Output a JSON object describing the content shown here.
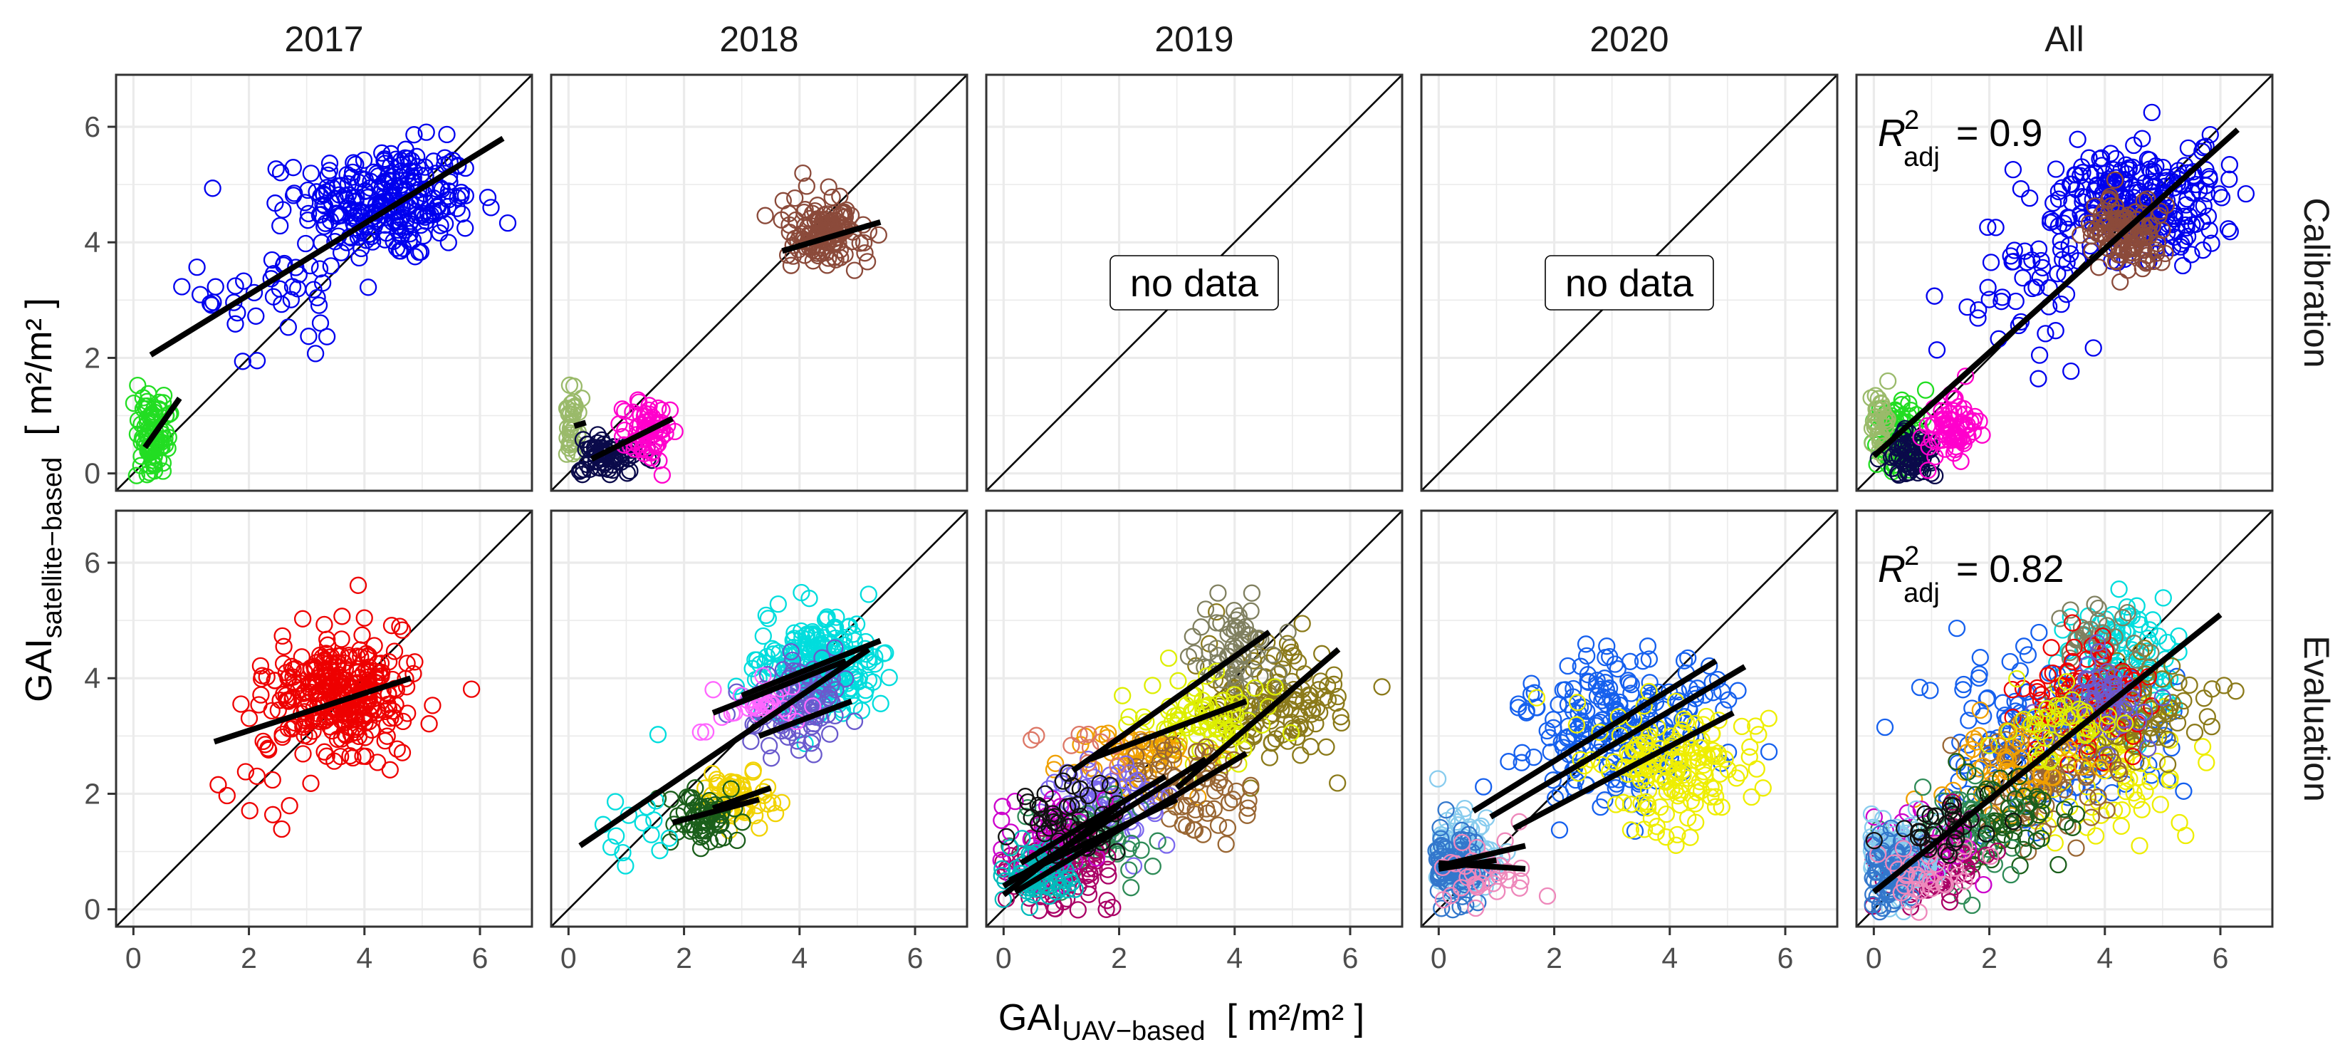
{
  "chart_data": {
    "type": "scatter",
    "title": "",
    "xlabel": {
      "prefix": "GAI",
      "subscript": "UAV−based",
      "units": "[ m²/m² ]"
    },
    "ylabel": {
      "prefix": "GAI",
      "subscript": "satellite−based",
      "units": "[ m²/m² ]"
    },
    "xlim": [
      -0.3,
      6.9
    ],
    "ylim": [
      -0.3,
      6.9
    ],
    "x_ticks": [
      0,
      2,
      4,
      6
    ],
    "y_ticks": [
      0,
      2,
      4,
      6
    ],
    "columns": [
      "2017",
      "2018",
      "2019",
      "2020",
      "All"
    ],
    "rows": [
      "Calibration",
      "Evaluation"
    ],
    "reference_line": "1:1",
    "no_data_label": "no data",
    "r2_label": {
      "symbol": "R",
      "sup": "2",
      "sub": "adj"
    },
    "panels": [
      {
        "row": "Calibration",
        "column": "2017",
        "clusters": [
          {
            "color": "#0000ee",
            "center": [
              4.4,
              4.7
            ],
            "spread": [
              0.75,
              0.5
            ],
            "n": 260
          },
          {
            "color": "#0000ee",
            "center": [
              2.6,
              3.2
            ],
            "spread": [
              0.7,
              0.8
            ],
            "n": 45
          },
          {
            "color": "#22dd22",
            "center": [
              0.35,
              0.7
            ],
            "spread": [
              0.15,
              0.35
            ],
            "n": 90
          }
        ],
        "fits": [
          {
            "x": [
              0.3,
              6.4
            ],
            "y": [
              2.05,
              5.8
            ]
          },
          {
            "x": [
              0.2,
              0.8
            ],
            "y": [
              0.45,
              1.3
            ]
          }
        ]
      },
      {
        "row": "Calibration",
        "column": "2018",
        "clusters": [
          {
            "color": "#8b4a3a",
            "center": [
              4.4,
              4.15
            ],
            "spread": [
              0.35,
              0.3
            ],
            "n": 140
          },
          {
            "color": "#9aba6a",
            "center": [
              0.05,
              0.9
            ],
            "spread": [
              0.06,
              0.3
            ],
            "n": 35
          },
          {
            "color": "#0a0a4a",
            "center": [
              0.65,
              0.3
            ],
            "spread": [
              0.25,
              0.2
            ],
            "n": 70
          },
          {
            "color": "#ff00cc",
            "center": [
              1.35,
              0.7
            ],
            "spread": [
              0.2,
              0.25
            ],
            "n": 70
          }
        ],
        "fits": [
          {
            "x": [
              3.7,
              5.4
            ],
            "y": [
              3.85,
              4.35
            ]
          },
          {
            "x": [
              0.1,
              0.3
            ],
            "y": [
              0.82,
              0.88
            ]
          },
          {
            "x": [
              0.4,
              1.8
            ],
            "y": [
              0.25,
              0.95
            ]
          }
        ]
      },
      {
        "row": "Calibration",
        "column": "2019",
        "no_data": true,
        "clusters": [],
        "fits": []
      },
      {
        "row": "Calibration",
        "column": "2020",
        "no_data": true,
        "clusters": [],
        "fits": []
      },
      {
        "row": "Calibration",
        "column": "All",
        "r2": "0.9",
        "clusters": [
          {
            "color": "#0000ee",
            "center": [
              4.6,
              4.7
            ],
            "spread": [
              0.75,
              0.5
            ],
            "n": 260
          },
          {
            "color": "#0000ee",
            "center": [
              2.6,
              3.2
            ],
            "spread": [
              0.7,
              0.8
            ],
            "n": 45
          },
          {
            "color": "#8b4a3a",
            "center": [
              4.4,
              4.15
            ],
            "spread": [
              0.35,
              0.3
            ],
            "n": 120
          },
          {
            "color": "#22dd22",
            "center": [
              0.4,
              0.6
            ],
            "spread": [
              0.2,
              0.35
            ],
            "n": 90
          },
          {
            "color": "#9aba6a",
            "center": [
              0.1,
              0.9
            ],
            "spread": [
              0.08,
              0.3
            ],
            "n": 35
          },
          {
            "color": "#0a0a4a",
            "center": [
              0.7,
              0.3
            ],
            "spread": [
              0.25,
              0.2
            ],
            "n": 70
          },
          {
            "color": "#ff00cc",
            "center": [
              1.35,
              0.7
            ],
            "spread": [
              0.2,
              0.25
            ],
            "n": 70
          }
        ],
        "fits": [
          {
            "x": [
              0.0,
              6.3
            ],
            "y": [
              0.3,
              5.95
            ]
          }
        ]
      },
      {
        "row": "Evaluation",
        "column": "2017",
        "clusters": [
          {
            "color": "#ee0000",
            "center": [
              3.6,
              3.7
            ],
            "spread": [
              0.6,
              0.5
            ],
            "n": 320
          },
          {
            "color": "#ee0000",
            "center": [
              2.0,
              2.2
            ],
            "spread": [
              0.5,
              0.5
            ],
            "n": 12
          }
        ],
        "fits": [
          {
            "x": [
              1.4,
              4.8
            ],
            "y": [
              2.9,
              4.0
            ]
          }
        ]
      },
      {
        "row": "Evaluation",
        "column": "2018",
        "clusters": [
          {
            "color": "#00dddd",
            "center": [
              4.3,
              4.2
            ],
            "spread": [
              0.5,
              0.45
            ],
            "n": 240
          },
          {
            "color": "#6a5acd",
            "center": [
              4.0,
              3.5
            ],
            "spread": [
              0.4,
              0.4
            ],
            "n": 100
          },
          {
            "color": "#ff66ff",
            "center": [
              3.4,
              3.6
            ],
            "spread": [
              0.5,
              0.3
            ],
            "n": 30
          },
          {
            "color": "#f1d200",
            "center": [
              2.9,
              1.9
            ],
            "spread": [
              0.3,
              0.25
            ],
            "n": 60
          },
          {
            "color": "#1a5e1a",
            "center": [
              2.3,
              1.6
            ],
            "spread": [
              0.35,
              0.25
            ],
            "n": 60
          },
          {
            "color": "#00dddd",
            "center": [
              1.2,
              1.4
            ],
            "spread": [
              0.6,
              0.5
            ],
            "n": 15
          }
        ],
        "fits": [
          {
            "x": [
              0.2,
              5.2
            ],
            "y": [
              1.1,
              4.5
            ]
          },
          {
            "x": [
              3.0,
              5.4
            ],
            "y": [
              3.7,
              4.65
            ]
          },
          {
            "x": [
              2.5,
              4.8
            ],
            "y": [
              3.4,
              4.3
            ]
          },
          {
            "x": [
              3.3,
              4.9
            ],
            "y": [
              3.0,
              3.6
            ]
          },
          {
            "x": [
              1.8,
              3.3
            ],
            "y": [
              1.5,
              1.9
            ]
          },
          {
            "x": [
              2.5,
              3.5
            ],
            "y": [
              1.75,
              2.1
            ]
          }
        ]
      },
      {
        "row": "Evaluation",
        "column": "2019",
        "clusters": [
          {
            "color": "#8b7a1a",
            "center": [
              4.6,
              3.6
            ],
            "spread": [
              0.6,
              0.5
            ],
            "n": 140
          },
          {
            "color": "#808060",
            "center": [
              4.0,
              4.5
            ],
            "spread": [
              0.4,
              0.4
            ],
            "n": 60
          },
          {
            "color": "#ddee00",
            "center": [
              3.4,
              3.2
            ],
            "spread": [
              0.5,
              0.4
            ],
            "n": 90
          },
          {
            "color": "#f0a000",
            "center": [
              2.4,
              2.6
            ],
            "spread": [
              0.6,
              0.4
            ],
            "n": 60
          },
          {
            "color": "#996633",
            "center": [
              3.2,
              2.1
            ],
            "spread": [
              0.5,
              0.4
            ],
            "n": 70
          },
          {
            "color": "#7b68ee",
            "center": [
              1.8,
              1.9
            ],
            "spread": [
              0.5,
              0.4
            ],
            "n": 70
          },
          {
            "color": "#2e8b57",
            "center": [
              1.5,
              1.2
            ],
            "spread": [
              0.5,
              0.35
            ],
            "n": 70
          },
          {
            "color": "#aa0066",
            "center": [
              1.0,
              0.7
            ],
            "spread": [
              0.5,
              0.35
            ],
            "n": 90
          },
          {
            "color": "#cc00cc",
            "center": [
              0.8,
              1.2
            ],
            "spread": [
              0.4,
              0.35
            ],
            "n": 50
          },
          {
            "color": "#00bbbb",
            "center": [
              0.5,
              0.6
            ],
            "spread": [
              0.3,
              0.3
            ],
            "n": 60
          },
          {
            "color": "#111111",
            "center": [
              1.2,
              1.5
            ],
            "spread": [
              0.5,
              0.4
            ],
            "n": 50
          },
          {
            "color": "#dd7766",
            "center": [
              1.3,
              2.8
            ],
            "spread": [
              0.4,
              0.2
            ],
            "n": 10
          }
        ],
        "fits": [
          {
            "x": [
              1.2,
              4.6
            ],
            "y": [
              2.4,
              4.8
            ]
          },
          {
            "x": [
              3.0,
              5.8
            ],
            "y": [
              2.1,
              4.5
            ]
          },
          {
            "x": [
              1.5,
              4.2
            ],
            "y": [
              2.6,
              3.6
            ]
          },
          {
            "x": [
              0.0,
              3.5
            ],
            "y": [
              0.4,
              2.6
            ]
          },
          {
            "x": [
              0.2,
              4.2
            ],
            "y": [
              0.3,
              2.7
            ]
          },
          {
            "x": [
              0.1,
              3.0
            ],
            "y": [
              0.5,
              1.9
            ]
          },
          {
            "x": [
              0.0,
              2.0
            ],
            "y": [
              0.25,
              1.8
            ]
          },
          {
            "x": [
              0.3,
              2.8
            ],
            "y": [
              0.8,
              2.3
            ]
          }
        ]
      },
      {
        "row": "Evaluation",
        "column": "2020",
        "clusters": [
          {
            "color": "#1560ee",
            "center": [
              3.1,
              3.2
            ],
            "spread": [
              0.9,
              0.6
            ],
            "n": 230
          },
          {
            "color": "#eeee00",
            "center": [
              4.0,
              2.5
            ],
            "spread": [
              0.7,
              0.5
            ],
            "n": 160
          },
          {
            "color": "#88ccee",
            "center": [
              0.4,
              0.9
            ],
            "spread": [
              0.3,
              0.4
            ],
            "n": 120
          },
          {
            "color": "#3377cc",
            "center": [
              0.3,
              0.7
            ],
            "spread": [
              0.25,
              0.35
            ],
            "n": 90
          },
          {
            "color": "#ee88bb",
            "center": [
              0.8,
              0.6
            ],
            "spread": [
              0.4,
              0.3
            ],
            "n": 35
          }
        ],
        "fits": [
          {
            "x": [
              0.6,
              4.8
            ],
            "y": [
              1.7,
              4.3
            ]
          },
          {
            "x": [
              0.9,
              5.3
            ],
            "y": [
              1.6,
              4.2
            ]
          },
          {
            "x": [
              1.3,
              5.1
            ],
            "y": [
              1.4,
              3.4
            ]
          },
          {
            "x": [
              0.0,
              1.5
            ],
            "y": [
              0.75,
              1.1
            ]
          },
          {
            "x": [
              0.0,
              1.5
            ],
            "y": [
              0.8,
              0.7
            ]
          },
          {
            "x": [
              0.0,
              1.0
            ],
            "y": [
              0.7,
              0.85
            ]
          }
        ]
      },
      {
        "row": "Evaluation",
        "column": "All",
        "r2": "0.82",
        "clusters": [
          {
            "color": "#00dddd",
            "center": [
              4.4,
              4.3
            ],
            "spread": [
              0.5,
              0.5
            ],
            "n": 110
          },
          {
            "color": "#1560ee",
            "center": [
              3.0,
              3.1
            ],
            "spread": [
              0.9,
              0.7
            ],
            "n": 160
          },
          {
            "color": "#eeee00",
            "center": [
              3.9,
              2.6
            ],
            "spread": [
              0.7,
              0.6
            ],
            "n": 100
          },
          {
            "color": "#8b7a1a",
            "center": [
              4.6,
              3.5
            ],
            "spread": [
              0.6,
              0.5
            ],
            "n": 90
          },
          {
            "color": "#808060",
            "center": [
              4.0,
              4.6
            ],
            "spread": [
              0.4,
              0.4
            ],
            "n": 35
          },
          {
            "color": "#ee0000",
            "center": [
              3.6,
              3.6
            ],
            "spread": [
              0.6,
              0.5
            ],
            "n": 90
          },
          {
            "color": "#6a5acd",
            "center": [
              4.0,
              3.5
            ],
            "spread": [
              0.4,
              0.4
            ],
            "n": 60
          },
          {
            "color": "#996633",
            "center": [
              3.0,
              2.2
            ],
            "spread": [
              0.6,
              0.5
            ],
            "n": 70
          },
          {
            "color": "#f0a000",
            "center": [
              2.3,
              2.5
            ],
            "spread": [
              0.6,
              0.4
            ],
            "n": 50
          },
          {
            "color": "#1a5e1a",
            "center": [
              2.2,
              1.6
            ],
            "spread": [
              0.5,
              0.4
            ],
            "n": 60
          },
          {
            "color": "#2e8b57",
            "center": [
              1.5,
              1.3
            ],
            "spread": [
              0.5,
              0.4
            ],
            "n": 50
          },
          {
            "color": "#aa0066",
            "center": [
              1.0,
              0.7
            ],
            "spread": [
              0.5,
              0.35
            ],
            "n": 80
          },
          {
            "color": "#cc00cc",
            "center": [
              0.8,
              1.1
            ],
            "spread": [
              0.4,
              0.35
            ],
            "n": 40
          },
          {
            "color": "#88ccee",
            "center": [
              0.4,
              0.9
            ],
            "spread": [
              0.3,
              0.4
            ],
            "n": 100
          },
          {
            "color": "#3377cc",
            "center": [
              0.3,
              0.7
            ],
            "spread": [
              0.25,
              0.35
            ],
            "n": 70
          },
          {
            "color": "#ee88bb",
            "center": [
              0.9,
              0.6
            ],
            "spread": [
              0.4,
              0.3
            ],
            "n": 30
          },
          {
            "color": "#111111",
            "center": [
              1.3,
              1.4
            ],
            "spread": [
              0.5,
              0.4
            ],
            "n": 30
          },
          {
            "color": "#ddee00",
            "center": [
              3.4,
              3.2
            ],
            "spread": [
              0.5,
              0.4
            ],
            "n": 40
          }
        ],
        "fits": [
          {
            "x": [
              0.0,
              6.0
            ],
            "y": [
              0.3,
              5.1
            ]
          }
        ]
      }
    ]
  }
}
